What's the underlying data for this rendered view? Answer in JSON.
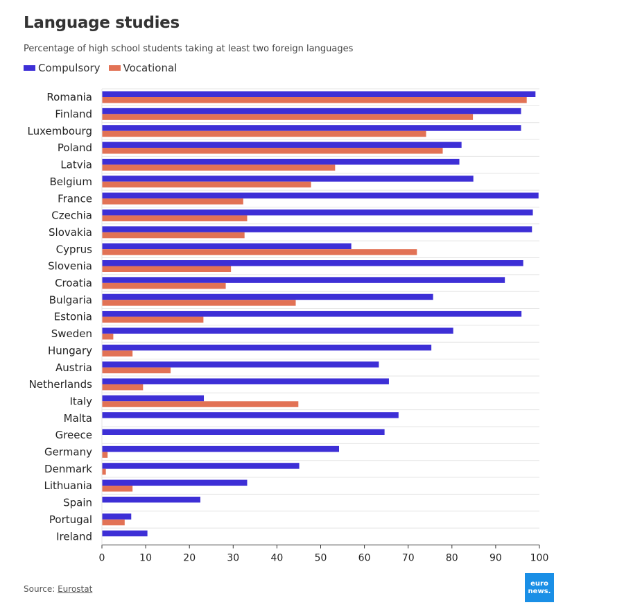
{
  "title": "Language studies",
  "subtitle": "Percentage of high school students taking at least two foreign languages",
  "source": {
    "label": "Source:",
    "link_text": "Eurostat"
  },
  "logo": {
    "line1": "euro",
    "line2": "news."
  },
  "colors": {
    "compulsory": "#3d2fd6",
    "vocational": "#e27255",
    "grid": "#e4e4e4",
    "axis": "#333333"
  },
  "chart_data": {
    "type": "bar",
    "orientation": "horizontal",
    "categories": [
      "Romania",
      "Finland",
      "Luxembourg",
      "Poland",
      "Latvia",
      "Belgium",
      "France",
      "Czechia",
      "Slovakia",
      "Cyprus",
      "Slovenia",
      "Croatia",
      "Bulgaria",
      "Estonia",
      "Sweden",
      "Hungary",
      "Austria",
      "Netherlands",
      "Italy",
      "Malta",
      "Greece",
      "Germany",
      "Denmark",
      "Lithuania",
      "Spain",
      "Portugal",
      "Ireland"
    ],
    "series": [
      {
        "name": "Compulsory",
        "color": "#3d2fd6",
        "values": [
          99.1,
          95.8,
          95.8,
          82.2,
          81.7,
          84.9,
          99.8,
          98.5,
          98.3,
          57.0,
          96.3,
          92.1,
          75.7,
          95.9,
          80.3,
          75.3,
          63.3,
          65.6,
          23.3,
          67.8,
          64.6,
          54.2,
          45.1,
          33.2,
          22.5,
          6.7,
          10.4
        ]
      },
      {
        "name": "Vocational",
        "color": "#e27255",
        "values": [
          97.1,
          84.8,
          74.1,
          77.9,
          53.3,
          47.8,
          32.3,
          33.2,
          32.6,
          72.0,
          29.5,
          28.3,
          44.3,
          23.2,
          2.6,
          7.0,
          15.7,
          9.4,
          44.9,
          0,
          0,
          1.3,
          0.9,
          7.0,
          0,
          5.2,
          0
        ]
      }
    ],
    "xlim": [
      0,
      100
    ],
    "xticks": [
      0,
      10,
      20,
      30,
      40,
      50,
      60,
      70,
      80,
      90,
      100
    ],
    "grid": true,
    "legend_position": "top-left"
  }
}
